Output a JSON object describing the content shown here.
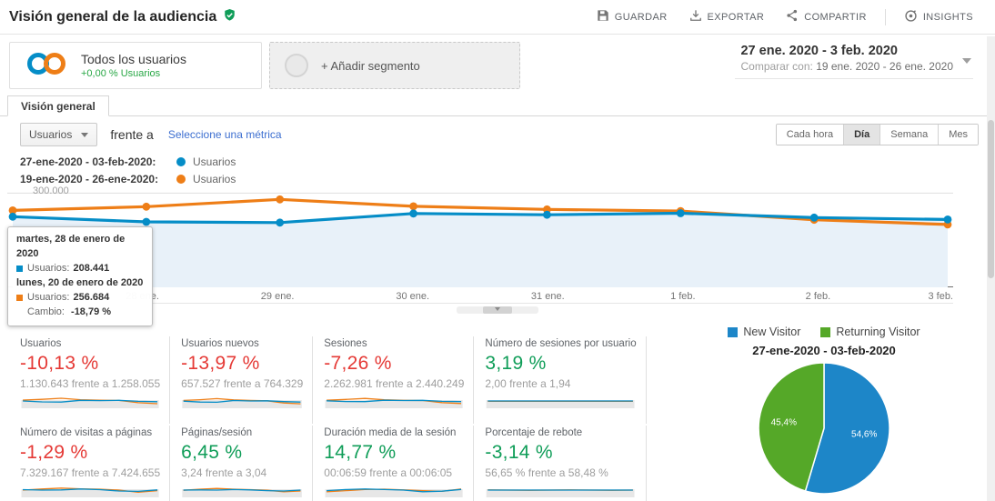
{
  "header": {
    "title": "Visión general de la audiencia",
    "actions": [
      {
        "label": "GUARDAR",
        "icon": "save-icon"
      },
      {
        "label": "EXPORTAR",
        "icon": "export-icon"
      },
      {
        "label": "COMPARTIR",
        "icon": "share-icon"
      },
      {
        "label": "INSIGHTS",
        "icon": "insights-icon"
      }
    ]
  },
  "segments": {
    "all_users": {
      "title": "Todos los usuarios",
      "subtitle": "+0,00 % Usuarios"
    },
    "add_label": "+ Añadir segmento"
  },
  "date_range": {
    "primary": "27 ene. 2020 - 3 feb. 2020",
    "compare_label": "Comparar con:",
    "compare": "19 ene. 2020 - 26 ene. 2020"
  },
  "tabs": {
    "overview": "Visión general"
  },
  "toolbar": {
    "metric_select": "Usuarios",
    "vs_label": "frente a",
    "select_metric_link": "Seleccione una métrica",
    "granularity": [
      "Cada hora",
      "Día",
      "Semana",
      "Mes"
    ],
    "granularity_active": "Día"
  },
  "legend": [
    {
      "range": "27-ene-2020 - 03-feb-2020:",
      "metric": "Usuarios",
      "color": "#058dc7"
    },
    {
      "range": "19-ene-2020 - 26-ene-2020:",
      "metric": "Usuarios",
      "color": "#ee7e17"
    }
  ],
  "tooltip": {
    "date_current": "martes, 28 de enero de 2020",
    "metric_label": "Usuarios:",
    "value_current": "208.441",
    "date_previous": "lunes, 20 de enero de 2020",
    "value_previous": "256.684",
    "change_label": "Cambio:",
    "change_value": "-18,79 %"
  },
  "chart_data": [
    {
      "type": "line",
      "title": "Usuarios",
      "x": [
        "27 ene.",
        "28 ene.",
        "29 ene.",
        "30 ene.",
        "31 ene.",
        "1 feb.",
        "2 feb.",
        "3 feb."
      ],
      "x_tick_labels": [
        "...",
        "28 ene.",
        "29 ene.",
        "30 ene.",
        "31 ene.",
        "1 feb.",
        "2 feb.",
        "3 feb."
      ],
      "series": [
        {
          "name": "27-ene-2020 - 03-feb-2020 Usuarios",
          "color": "#058dc7",
          "values": [
            225000,
            208441,
            206000,
            235000,
            231000,
            236000,
            222000,
            216000
          ]
        },
        {
          "name": "19-ene-2020 - 26-ene-2020 Usuarios",
          "color": "#ee7e17",
          "values": [
            245000,
            256684,
            280000,
            258000,
            248000,
            243000,
            215000,
            200000
          ]
        }
      ],
      "ylim": [
        0,
        330000
      ],
      "gridline_value": 300000,
      "gridline_label": "300.000",
      "area_fill": "#e8f1f9",
      "legend_position": "top-left",
      "grid": "single-horizontal"
    },
    {
      "type": "pie",
      "title": "27-ene-2020 - 03-feb-2020",
      "labels": [
        "New Visitor",
        "Returning Visitor"
      ],
      "values": [
        54.6,
        45.4
      ],
      "display_labels": [
        "54,6%",
        "45,4%"
      ],
      "colors": [
        "#1d86c8",
        "#55a828"
      ],
      "legend_position": "top"
    }
  ],
  "metric_cards": [
    {
      "title": "Usuarios",
      "pct": "-10,13 %",
      "color": "#e53935",
      "comparison": "1.130.643 frente a 1.258.055",
      "spark": {
        "current": [
          0.5,
          0.42,
          0.4,
          0.56,
          0.53,
          0.56,
          0.47,
          0.43
        ],
        "previous": [
          0.58,
          0.65,
          0.75,
          0.62,
          0.57,
          0.55,
          0.34,
          0.25
        ]
      }
    },
    {
      "title": "Usuarios nuevos",
      "pct": "-13,97 %",
      "color": "#e53935",
      "comparison": "657.527 frente a 764.329",
      "spark": {
        "current": [
          0.48,
          0.4,
          0.38,
          0.54,
          0.5,
          0.52,
          0.44,
          0.4
        ],
        "previous": [
          0.55,
          0.62,
          0.72,
          0.6,
          0.55,
          0.52,
          0.32,
          0.24
        ]
      }
    },
    {
      "title": "Sesiones",
      "pct": "-7,26 %",
      "color": "#e53935",
      "comparison": "2.262.981 frente a 2.440.249",
      "spark": {
        "current": [
          0.52,
          0.45,
          0.44,
          0.57,
          0.54,
          0.56,
          0.47,
          0.44
        ],
        "previous": [
          0.57,
          0.64,
          0.73,
          0.61,
          0.56,
          0.54,
          0.35,
          0.27
        ]
      }
    },
    {
      "title": "Número de sesiones por usuario",
      "pct": "3,19 %",
      "color": "#0f9d58",
      "comparison": "2,00 frente a 1,94",
      "spark": {
        "current": [
          0.5,
          0.5,
          0.5,
          0.5,
          0.5,
          0.5,
          0.5,
          0.5
        ],
        "previous": [
          0.47,
          0.47,
          0.47,
          0.47,
          0.47,
          0.47,
          0.47,
          0.47
        ]
      }
    },
    {
      "title": "Número de visitas a páginas",
      "pct": "-1,29 %",
      "color": "#e53935",
      "comparison": "7.329.167 frente a 7.424.655",
      "spark": {
        "current": [
          0.54,
          0.5,
          0.52,
          0.6,
          0.54,
          0.42,
          0.38,
          0.52
        ],
        "previous": [
          0.5,
          0.6,
          0.68,
          0.62,
          0.58,
          0.5,
          0.3,
          0.45
        ]
      }
    },
    {
      "title": "Páginas/sesión",
      "pct": "6,45 %",
      "color": "#0f9d58",
      "comparison": "3,24 frente a 3,04",
      "spark": {
        "current": [
          0.5,
          0.52,
          0.5,
          0.55,
          0.52,
          0.45,
          0.42,
          0.5
        ],
        "previous": [
          0.48,
          0.58,
          0.65,
          0.58,
          0.54,
          0.48,
          0.35,
          0.42
        ]
      }
    },
    {
      "title": "Duración media de la sesión",
      "pct": "14,77 %",
      "color": "#0f9d58",
      "comparison": "00:06:59 frente a 00:06:05",
      "spark": {
        "current": [
          0.45,
          0.55,
          0.6,
          0.55,
          0.5,
          0.35,
          0.4,
          0.56
        ],
        "previous": [
          0.35,
          0.45,
          0.55,
          0.58,
          0.52,
          0.45,
          0.38,
          0.6
        ]
      }
    },
    {
      "title": "Porcentaje de rebote",
      "pct": "-3,14 %",
      "color": "#0f9d58",
      "comparison": "56,65 % frente a 58,48 %",
      "spark": {
        "current": [
          0.5,
          0.5,
          0.5,
          0.5,
          0.5,
          0.5,
          0.5,
          0.5
        ],
        "previous": [
          0.52,
          0.5,
          0.48,
          0.5,
          0.52,
          0.5,
          0.48,
          0.5
        ]
      }
    }
  ]
}
